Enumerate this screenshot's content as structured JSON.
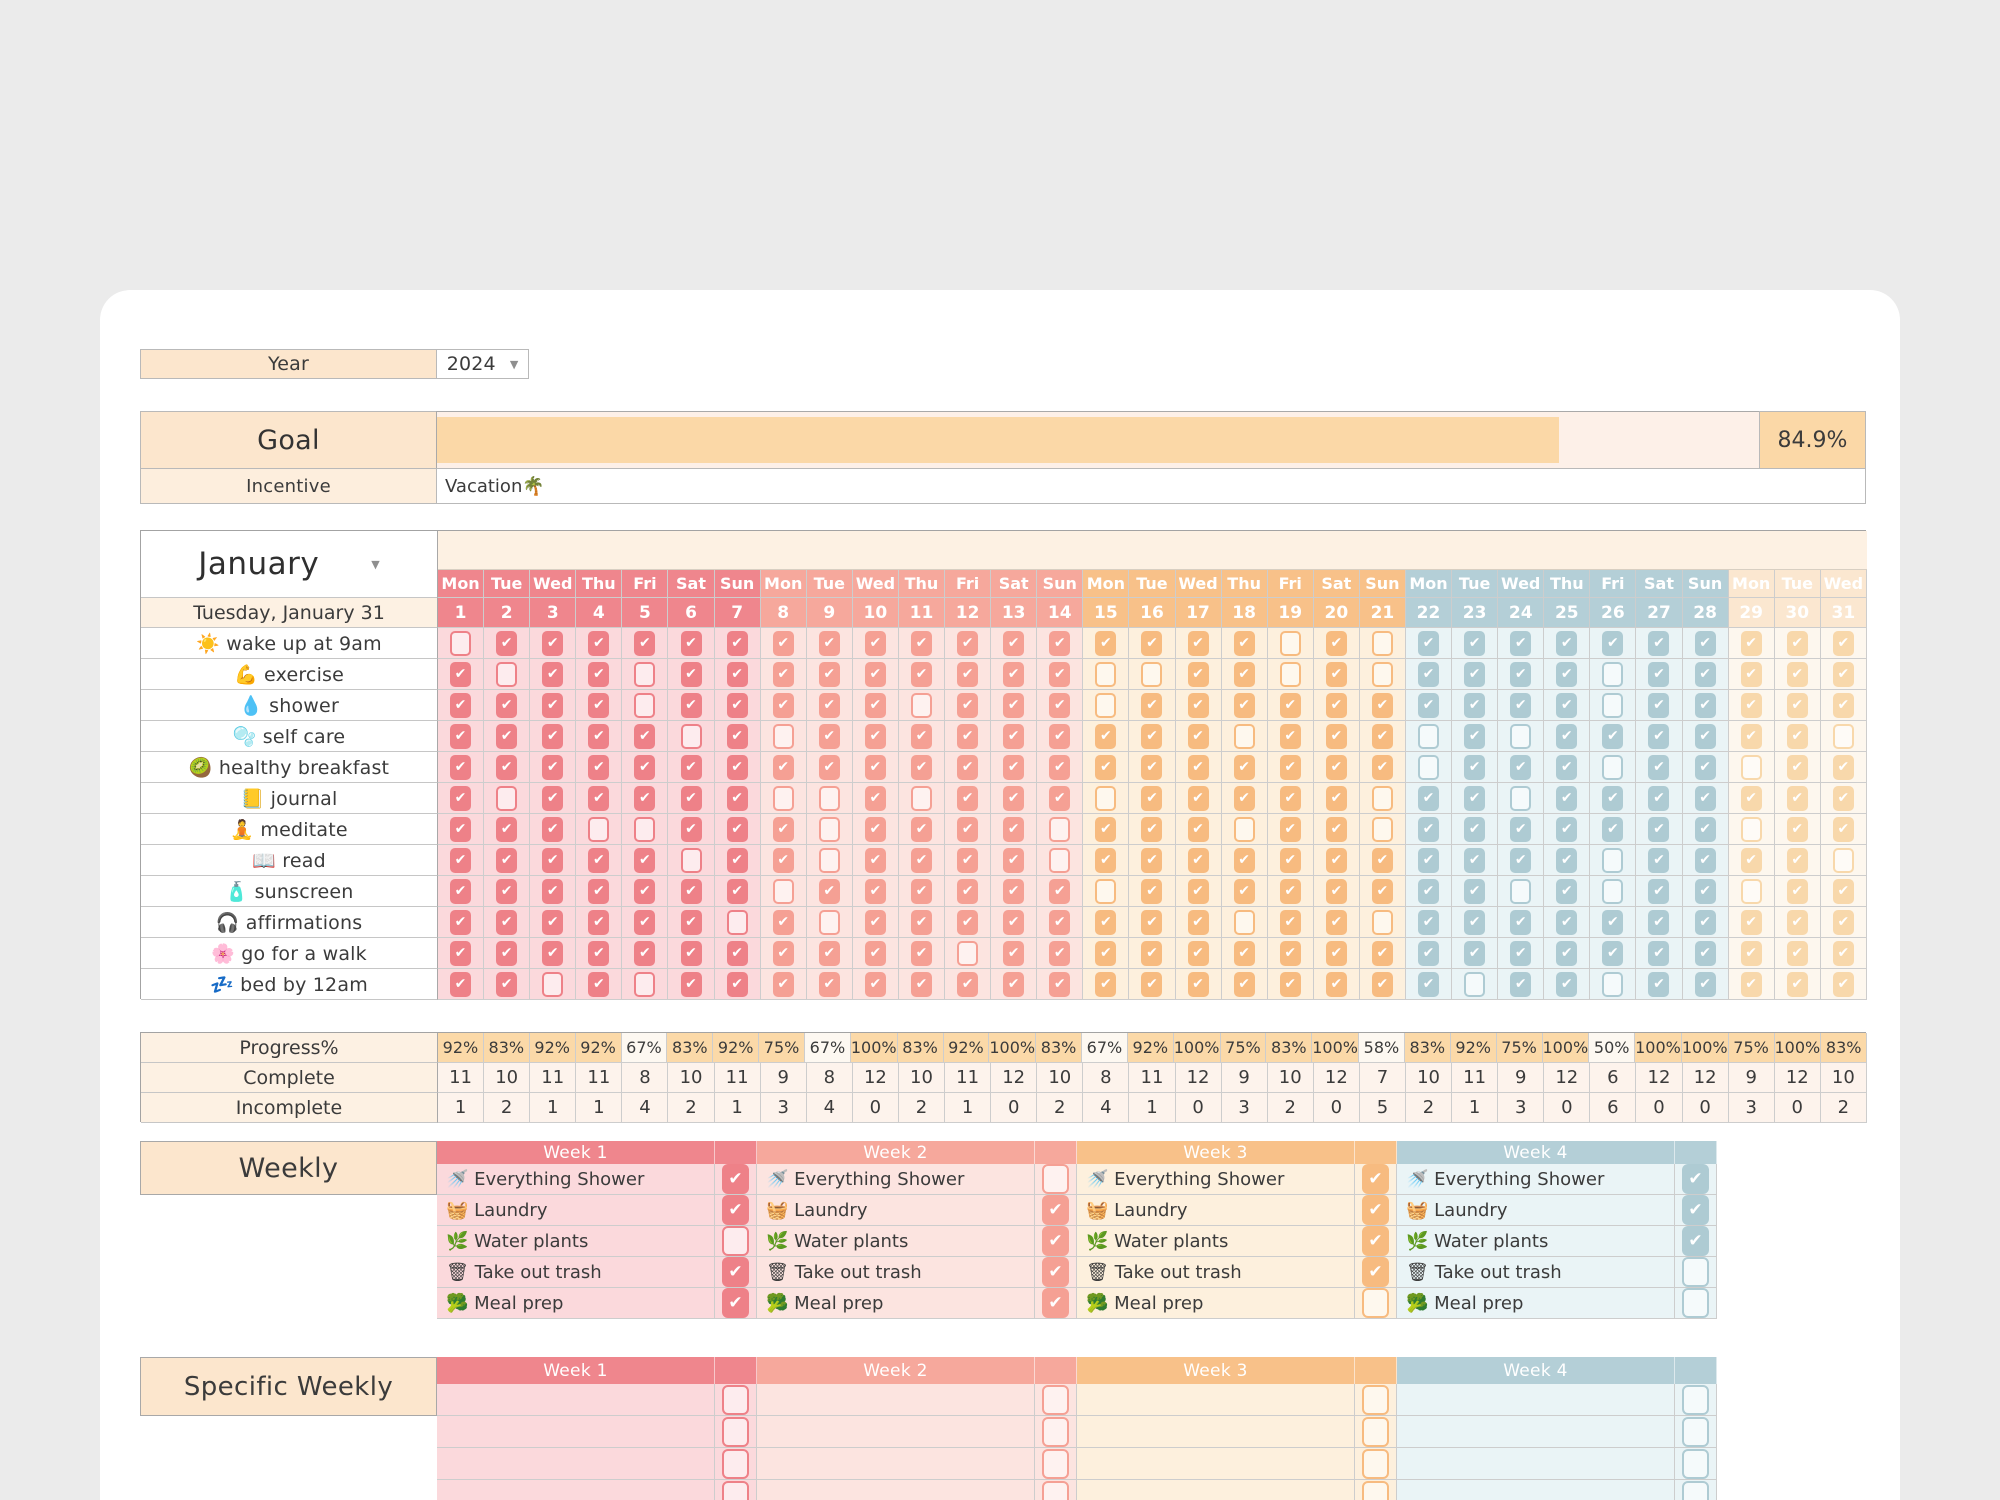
{
  "year_row": {
    "label": "Year",
    "value": "2024"
  },
  "goal": {
    "label": "Goal",
    "progress_pct_text": "84.9%",
    "progress_value": 84.9,
    "incentive_label": "Incentive",
    "incentive_value": "Vacation🌴"
  },
  "month": {
    "name": "January",
    "date_label": "Tuesday, January 31",
    "day_names": [
      "Mon",
      "Tue",
      "Wed",
      "Thu",
      "Fri",
      "Sat",
      "Sun"
    ],
    "num_days": 31,
    "habits": [
      {
        "label": "☀️ wake up at 9am",
        "checks": "0111111111111111110101111111111"
      },
      {
        "label": "💪 exercise",
        "checks": "1011011111111100110101111011111"
      },
      {
        "label": "💧 shower",
        "checks": "1111011111011101111111111011111"
      },
      {
        "label": "🫧 self care",
        "checks": "1111101011111111101110101111110"
      },
      {
        "label": "🥝 healthy breakfast",
        "checks": "1111111111111111111110111011011"
      },
      {
        "label": "📒 journal",
        "checks": "1011111001011101111101101111111"
      },
      {
        "label": "🧘 meditate",
        "checks": "1110011101111011101101111111011"
      },
      {
        "label": "📖 read",
        "checks": "1111101101111011111111111011110"
      },
      {
        "label": "🧴 sunscreen",
        "checks": "1111111011111101111111101011011"
      },
      {
        "label": "🎧 affirmations",
        "checks": "1111110101111111101101111111111"
      },
      {
        "label": "🌸 go for a walk",
        "checks": "1111111111101111111111111111111"
      },
      {
        "label": "💤 bed by 12am",
        "checks": "1101011111111111111111011011111"
      }
    ]
  },
  "stats": {
    "progress_label": "Progress%",
    "complete_label": "Complete",
    "incomplete_label": "Incomplete",
    "progress": [
      "92%",
      "83%",
      "92%",
      "92%",
      "67%",
      "83%",
      "92%",
      "75%",
      "67%",
      "100%",
      "83%",
      "92%",
      "100%",
      "83%",
      "67%",
      "92%",
      "100%",
      "75%",
      "83%",
      "100%",
      "58%",
      "83%",
      "92%",
      "75%",
      "100%",
      "50%",
      "100%",
      "100%",
      "75%",
      "100%",
      "83%"
    ],
    "complete": [
      11,
      10,
      11,
      11,
      8,
      10,
      11,
      9,
      8,
      12,
      10,
      11,
      12,
      10,
      8,
      11,
      12,
      9,
      10,
      12,
      7,
      10,
      11,
      9,
      12,
      6,
      12,
      12,
      9,
      12,
      10
    ],
    "incomplete": [
      1,
      2,
      1,
      1,
      4,
      2,
      1,
      3,
      4,
      0,
      2,
      1,
      0,
      2,
      4,
      1,
      0,
      3,
      2,
      0,
      5,
      2,
      1,
      3,
      0,
      6,
      0,
      0,
      3,
      0,
      2
    ]
  },
  "weekly": {
    "title": "Weekly",
    "tasks": [
      "🚿 Everything Shower",
      "🧺 Laundry",
      "🌿 Water plants",
      "🗑 Take out trash",
      "🥦 Meal prep"
    ],
    "weeks": [
      {
        "label": "Week 1",
        "checks": [
          1,
          1,
          0,
          1,
          1
        ]
      },
      {
        "label": "Week 2",
        "checks": [
          0,
          1,
          1,
          1,
          1
        ]
      },
      {
        "label": "Week 3",
        "checks": [
          1,
          1,
          1,
          1,
          0
        ]
      },
      {
        "label": "Week 4",
        "checks": [
          1,
          1,
          1,
          0,
          0
        ]
      }
    ]
  },
  "specific_weekly": {
    "title": "Specific Weekly",
    "weeks": [
      "Week 1",
      "Week 2",
      "Week 3",
      "Week 4"
    ],
    "empty_rows": 4
  },
  "colors": {
    "page_bg": "#ebebeb",
    "card_bg": "#ffffff",
    "peach_label": "#fce6cd",
    "incentive_label_bg": "#fdeedd",
    "cream": "#fdf1e3",
    "stats_cell_bg": "#fdf3ec",
    "progress_highlight": "#fbd9a8",
    "progress_pale": "#fdf8f1",
    "goal_fill": "#fbd8a7",
    "goal_track": "#fdf0e8",
    "weeks": [
      {
        "header": "#ef868d",
        "cell": "#fbd9dc",
        "check": "#ee8188"
      },
      {
        "header": "#f6a89c",
        "cell": "#fce4e0",
        "check": "#f5a094"
      },
      {
        "header": "#f8c189",
        "cell": "#fdf0dd",
        "check": "#f7bb80"
      },
      {
        "header": "#b4cfd7",
        "cell": "#eaf4f6",
        "check": "#aecbd3"
      },
      {
        "header": "#fbe7d0",
        "cell": "#fdf7ee",
        "check": "#f8d8ab"
      }
    ]
  }
}
